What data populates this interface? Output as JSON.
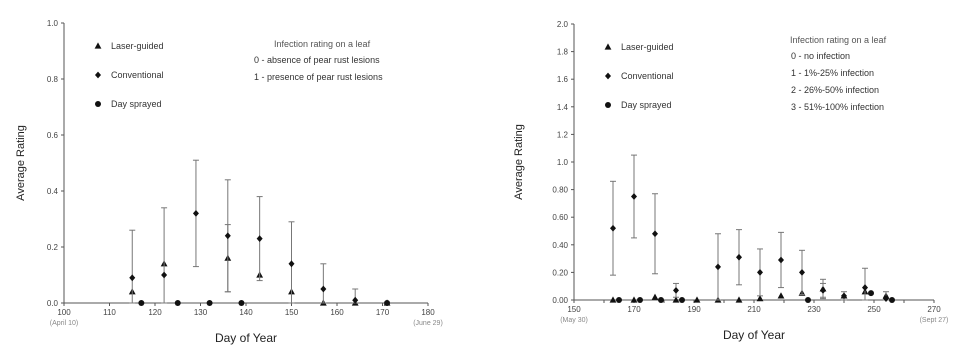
{
  "chart_data": [
    {
      "type": "scatter",
      "title": "",
      "xlabel": "Day of Year",
      "ylabel": "Average Rating",
      "xlim": [
        100,
        180
      ],
      "ylim": [
        0,
        1.0
      ],
      "xticks": [
        100,
        110,
        120,
        130,
        140,
        150,
        160,
        170,
        180
      ],
      "xtick_labels": [
        "100",
        "110",
        "120",
        "130",
        "140",
        "150",
        "160",
        "170",
        "180"
      ],
      "yticks": [
        0,
        0.2,
        0.4,
        0.6,
        0.8,
        1.0
      ],
      "ytick_labels": [
        "0.0",
        "0.2",
        "0.4",
        "0.6",
        "0.8",
        "1.0"
      ],
      "xsub_labels": [
        {
          "x": 100,
          "text": "(April 10)"
        },
        {
          "x": 180,
          "text": "(June 29)"
        }
      ],
      "grid": false,
      "legend_position": "top-left",
      "rating_note": {
        "title": "Infection rating on a leaf",
        "lines": [
          "0 - absence of pear rust lesions",
          "1 - presence of pear rust lesions"
        ]
      },
      "series": [
        {
          "name": "Laser-guided",
          "marker": "triangle",
          "x": [
            115,
            122,
            136,
            143,
            150,
            157,
            164,
            171
          ],
          "y": [
            0.04,
            0.14,
            0.16,
            0.1,
            0.04,
            0.0,
            0.0,
            0.0
          ],
          "err": [
            0,
            0,
            0.12,
            0,
            0,
            0,
            0,
            0
          ]
        },
        {
          "name": "Conventional",
          "marker": "diamond",
          "x": [
            115,
            122,
            129,
            136,
            143,
            150,
            157,
            164
          ],
          "y": [
            0.09,
            0.1,
            0.32,
            0.24,
            0.23,
            0.14,
            0.05,
            0.01
          ],
          "err": [
            0.17,
            0.24,
            0.19,
            0.2,
            0.15,
            0.15,
            0.09,
            0.04
          ]
        },
        {
          "name": "Day sprayed",
          "marker": "circle",
          "x": [
            117,
            125,
            132,
            139,
            171
          ],
          "y": [
            0,
            0,
            0,
            0,
            0
          ],
          "err": [
            0,
            0,
            0,
            0,
            0
          ]
        }
      ]
    },
    {
      "type": "scatter",
      "title": "",
      "xlabel": "Day of Year",
      "ylabel": "Average Rating",
      "xlim": [
        150,
        270
      ],
      "ylim": [
        0,
        2.0
      ],
      "xticks": [
        150,
        160,
        170,
        180,
        190,
        200,
        210,
        220,
        230,
        240,
        250,
        260,
        270
      ],
      "xtick_labels": [
        "150",
        "",
        "170",
        "",
        "190",
        "",
        "210",
        "",
        "230",
        "",
        "250",
        "",
        "270"
      ],
      "yticks": [
        0,
        0.2,
        0.4,
        0.6,
        0.8,
        1.0,
        1.2,
        1.4,
        1.6,
        1.8,
        2.0
      ],
      "ytick_labels": [
        "0.00",
        "0.20",
        "0.40",
        "0.60",
        "0.80",
        "1.0",
        "1.2",
        "1.4",
        "1.6",
        "1.8",
        "2.0"
      ],
      "xsub_labels": [
        {
          "x": 150,
          "text": "(May 30)"
        },
        {
          "x": 270,
          "text": "(Sept 27)"
        }
      ],
      "grid": false,
      "legend_position": "top-left",
      "rating_note": {
        "title": "Infection rating on a leaf",
        "lines": [
          "0 - no infection",
          "1 - 1%-25% infection",
          "2 - 26%-50% infection",
          "3 - 51%-100% infection"
        ]
      },
      "series": [
        {
          "name": "Laser-guided",
          "marker": "triangle",
          "x": [
            163,
            170,
            177,
            184,
            191,
            198,
            205,
            212,
            219,
            226,
            233,
            240,
            247,
            254
          ],
          "y": [
            0,
            0,
            0.02,
            0,
            0,
            0,
            0,
            0.01,
            0.03,
            0.05,
            0.08,
            0.03,
            0.06,
            0.03
          ],
          "err": [
            0,
            0,
            0,
            0,
            0,
            0,
            0,
            0,
            0,
            0,
            0.07,
            0,
            0,
            0
          ]
        },
        {
          "name": "Conventional",
          "marker": "diamond",
          "x": [
            163,
            170,
            177,
            184,
            198,
            205,
            212,
            219,
            226,
            233,
            240,
            247,
            254
          ],
          "y": [
            0.52,
            0.75,
            0.48,
            0.07,
            0.24,
            0.31,
            0.2,
            0.29,
            0.2,
            0.07,
            0.03,
            0.09,
            0.01
          ],
          "err": [
            0.34,
            0.3,
            0.29,
            0.05,
            0.24,
            0.2,
            0.17,
            0.2,
            0.16,
            0.05,
            0.03,
            0.14,
            0.05
          ]
        },
        {
          "name": "Day sprayed",
          "marker": "circle",
          "x": [
            165,
            172,
            179,
            186,
            228,
            249,
            256
          ],
          "y": [
            0,
            0,
            0,
            0,
            0,
            0.05,
            0
          ],
          "err": [
            0,
            0,
            0,
            0,
            0,
            0,
            0
          ]
        }
      ]
    }
  ]
}
